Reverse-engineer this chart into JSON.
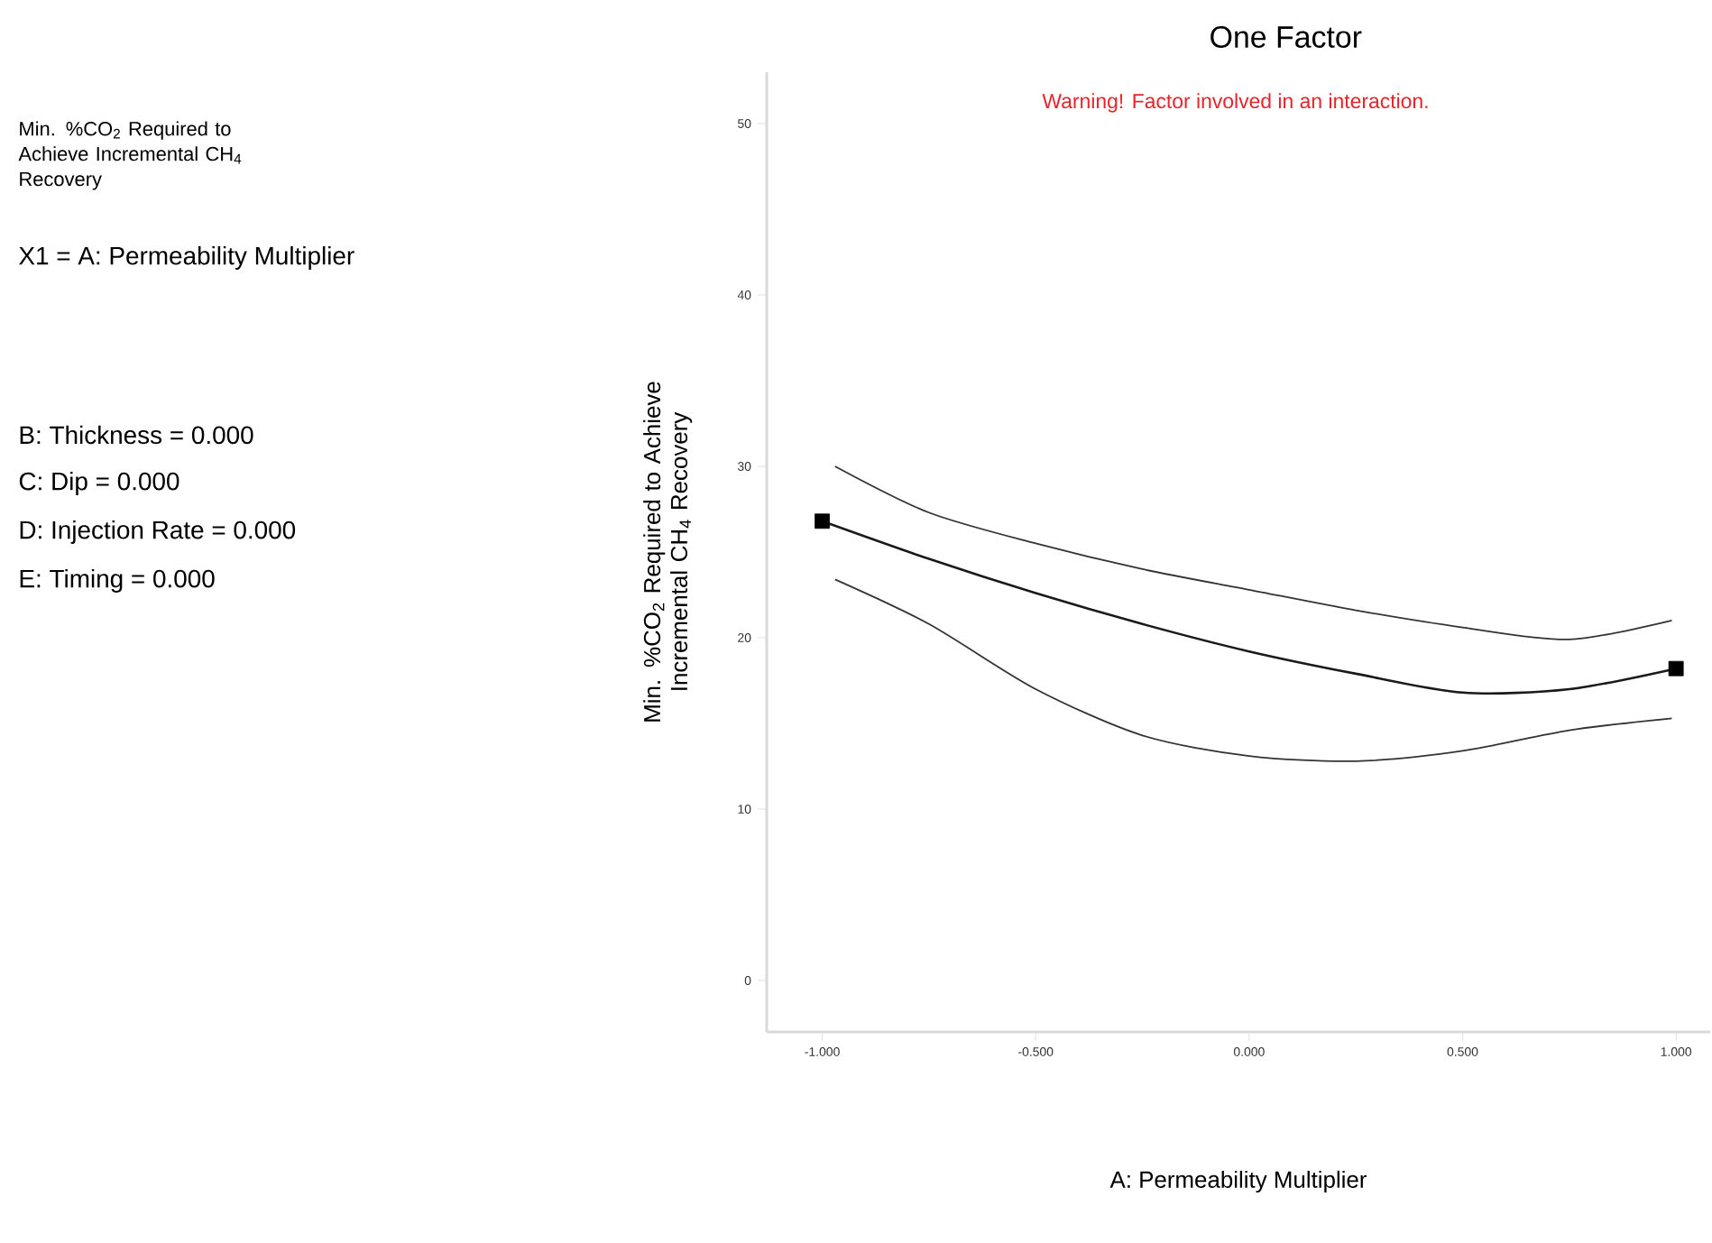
{
  "chart_data": {
    "type": "line",
    "title": "One Factor",
    "xlabel": "A: Permeability Multiplier",
    "ylabel": "Min. %CO$_{2}$ Required to Achieve Incremental CH$_{4}$ Recovery",
    "annotations": [
      "Warning! Factor involved in an interaction.",
      "Min. %CO$_{2}$ Required to Achieve Incremental CH$_{4}$ Recovery",
      "X1 = A: Permeability Multiplier",
      "B: Thickness = 0.000",
      "C: Dip = 0.000",
      "D: Injection Rate = 0.000",
      "E: Timing = 0.000"
    ],
    "xlim": [
      -1.13,
      1.08
    ],
    "ylim": [
      -3,
      53
    ],
    "xticks": [
      {
        "value": -1,
        "label": "-1.000"
      },
      {
        "value": -0.5,
        "label": "-0.500"
      },
      {
        "value": 0,
        "label": "0.000"
      },
      {
        "value": 0.5,
        "label": "0.500"
      },
      {
        "value": 1,
        "label": "1.000"
      }
    ],
    "yticks": [
      0,
      10,
      20,
      30,
      40,
      50
    ],
    "grid": false,
    "series": [
      {
        "color": "#1a1a1a",
        "x": [
          -1,
          -0.75,
          -0.5,
          -0.25,
          0,
          0.25,
          0.5,
          0.75,
          1
        ],
        "values": [
          26.8,
          24.6,
          22.6,
          20.8,
          19.2,
          17.9,
          16.8,
          17.0,
          18.2
        ]
      },
      {
        "color": "#333333",
        "x": [
          -0.97,
          -0.75,
          -0.5,
          -0.25,
          0,
          0.25,
          0.5,
          0.75,
          0.99
        ],
        "values": [
          30.0,
          27.3,
          25.5,
          24.0,
          22.8,
          21.6,
          20.6,
          19.9,
          21.0
        ]
      },
      {
        "color": "#333333",
        "x": [
          -0.97,
          -0.75,
          -0.5,
          -0.25,
          0,
          0.25,
          0.5,
          0.75,
          0.99
        ],
        "values": [
          23.4,
          20.8,
          17.0,
          14.3,
          13.1,
          12.8,
          13.4,
          14.6,
          15.3
        ]
      },
      {
        "type": "scatter",
        "color": "#000000",
        "marker": "square",
        "x": [
          -1,
          1
        ],
        "values": [
          26.8,
          18.2
        ]
      }
    ]
  }
}
